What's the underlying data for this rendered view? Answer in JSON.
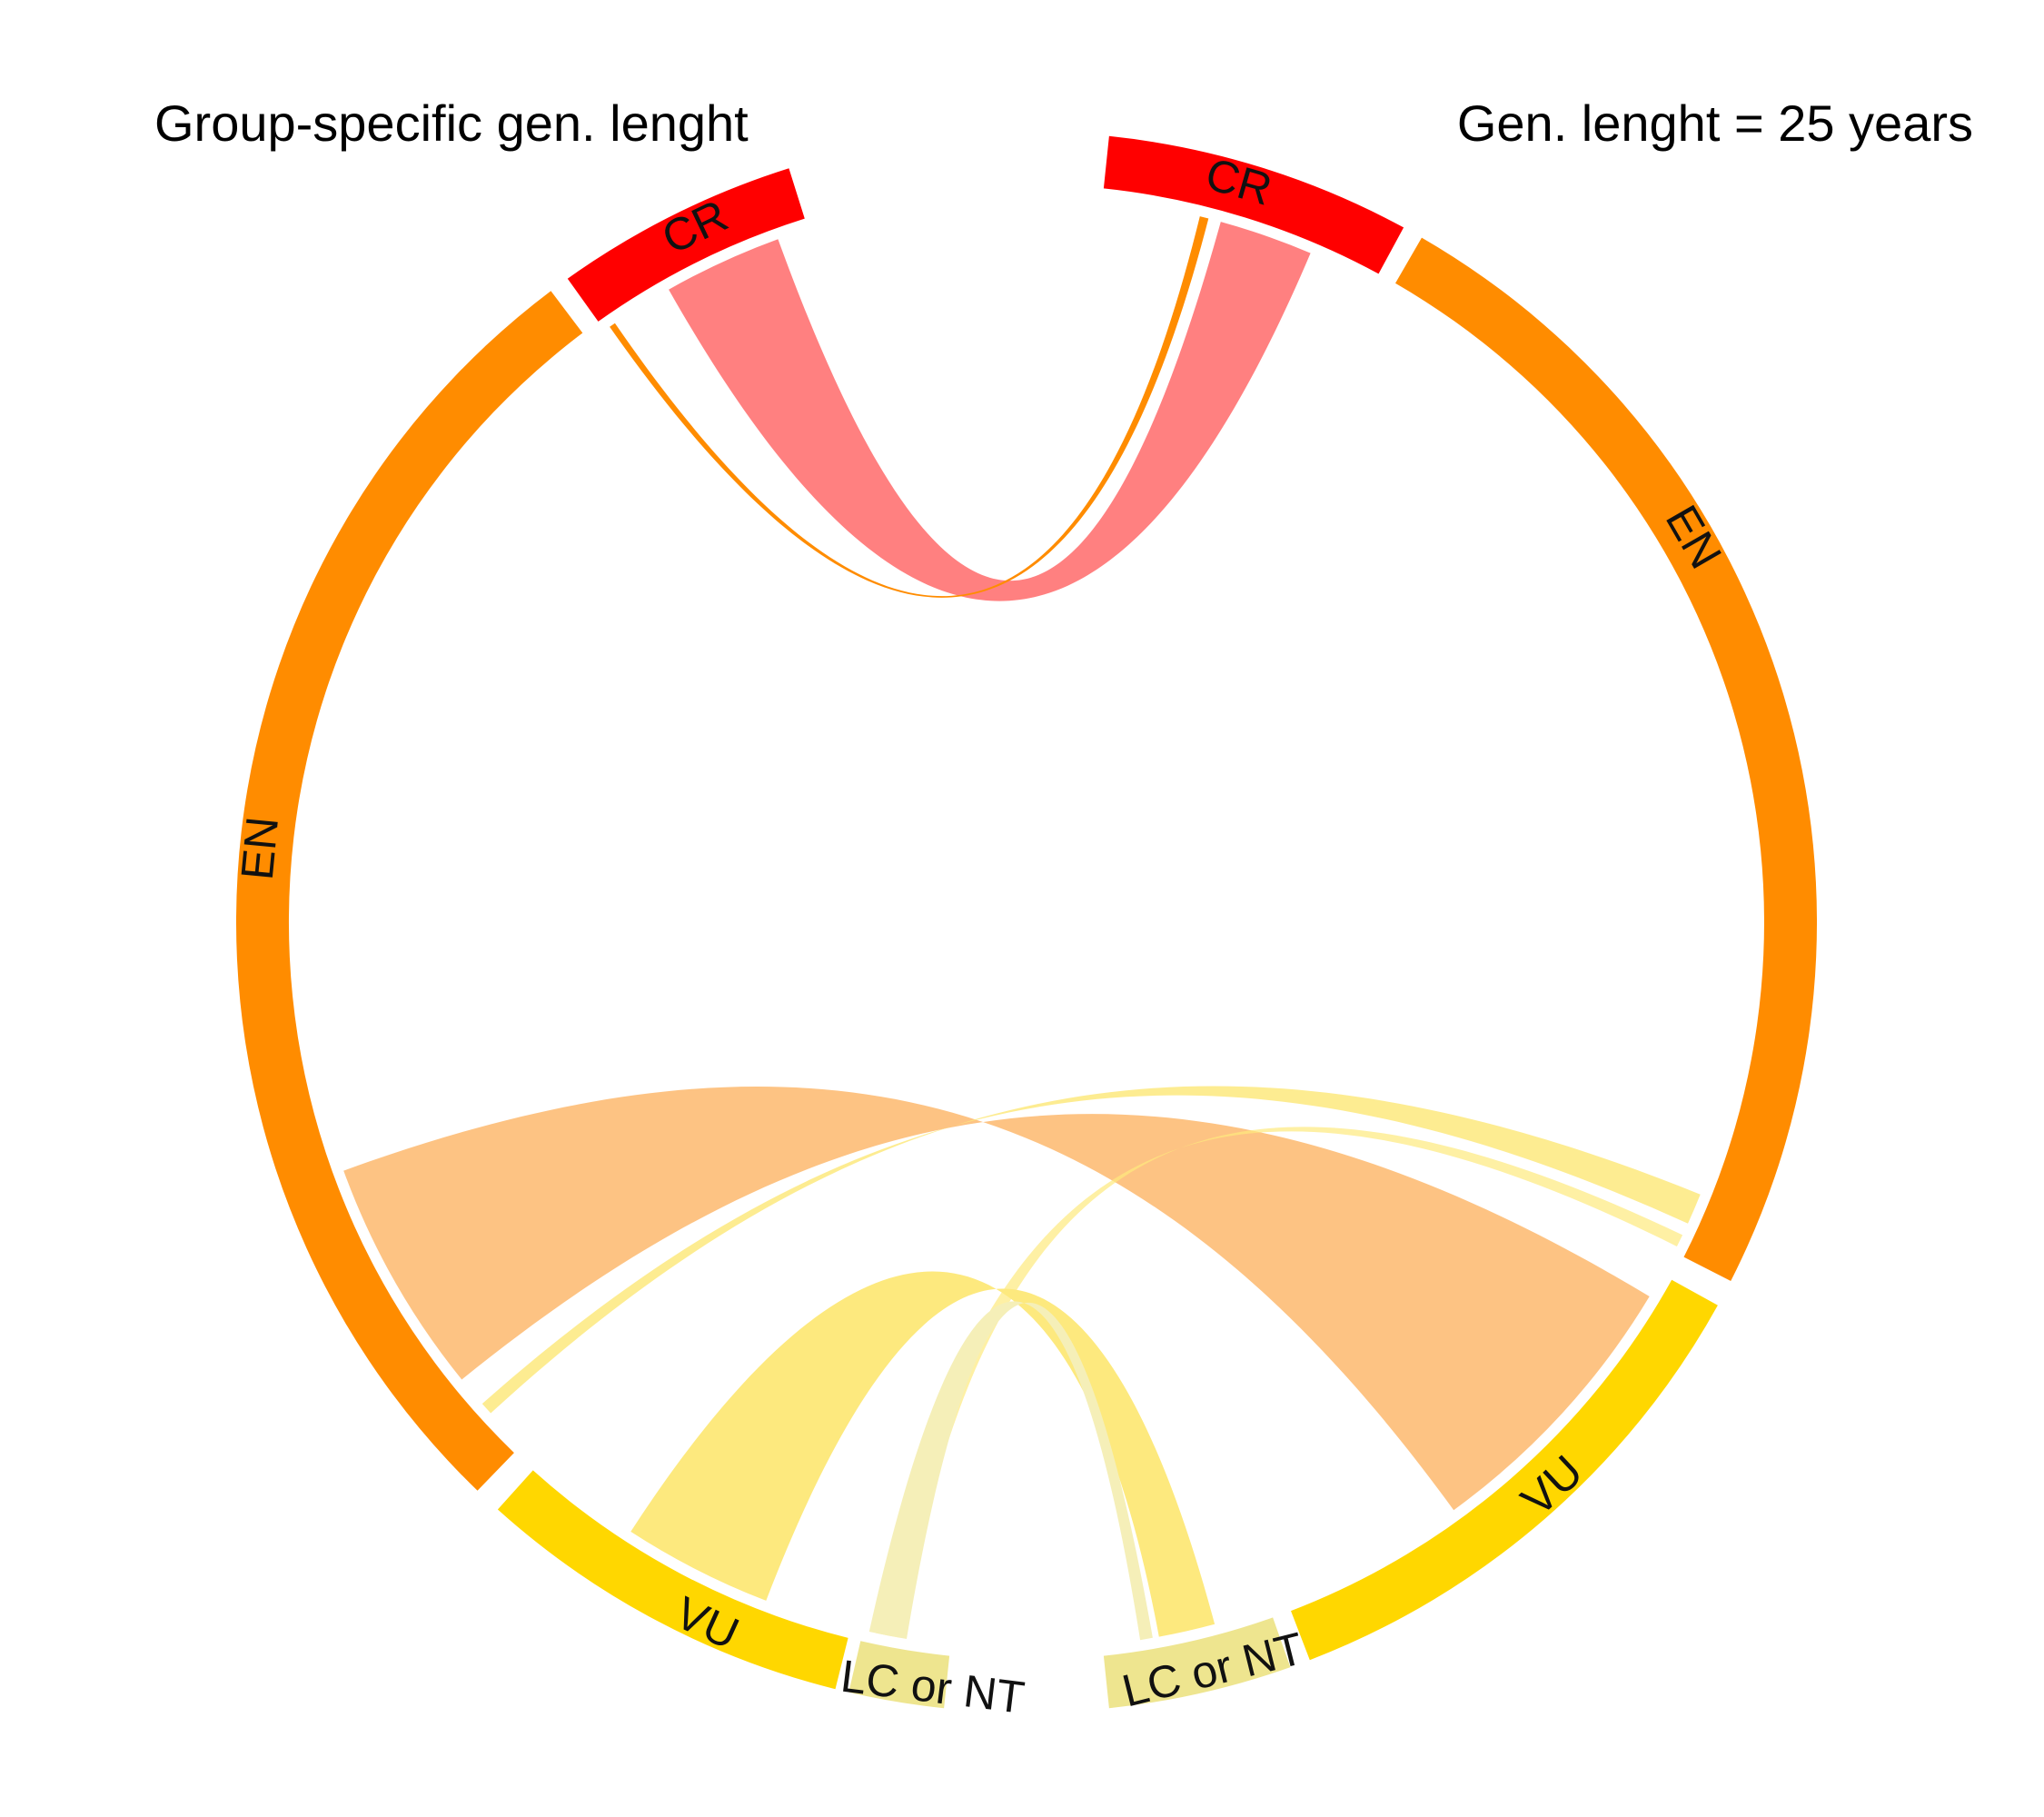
{
  "titles": {
    "left": "Group-specific gen. lenght",
    "right": "Gen. lenght = 25 years"
  },
  "colors": {
    "CR": "#ff0000",
    "EN": "#ff8c00",
    "VU": "#ffd700",
    "LC or NT": "#eee58f",
    "link_CR": "#ff8080",
    "link_EN": "#fdc383",
    "link_VU": "#fde97e",
    "link_LC": "#f5efb8"
  },
  "chart_data": {
    "type": "chord",
    "sectors": [
      {
        "id": "L_CR",
        "side": "left",
        "label": "CR",
        "category": "CR"
      },
      {
        "id": "L_EN",
        "side": "left",
        "label": "EN",
        "category": "EN"
      },
      {
        "id": "L_VU",
        "side": "left",
        "label": "VU",
        "category": "VU"
      },
      {
        "id": "L_LC",
        "side": "left",
        "label": "LC or NT",
        "category": "LC or NT"
      },
      {
        "id": "R_CR",
        "side": "right",
        "label": "CR",
        "category": "CR"
      },
      {
        "id": "R_EN",
        "side": "right",
        "label": "EN",
        "category": "EN"
      },
      {
        "id": "R_VU",
        "side": "right",
        "label": "VU",
        "category": "VU"
      },
      {
        "id": "R_LC",
        "side": "right",
        "label": "LC or NT",
        "category": "LC or NT"
      }
    ],
    "links": [
      {
        "from": "L_CR",
        "to": "R_CR",
        "category": "CR"
      },
      {
        "from": "L_EN",
        "to": "R_CR",
        "category": "EN"
      },
      {
        "from": "L_EN",
        "to": "R_VU",
        "category": "EN"
      },
      {
        "from": "L_VU",
        "to": "R_EN",
        "category": "VU"
      },
      {
        "from": "L_LC",
        "to": "R_EN",
        "category": "LC or NT"
      },
      {
        "from": "L_VU",
        "to": "R_LC",
        "category": "VU"
      },
      {
        "from": "L_LC",
        "to": "R_LC",
        "category": "LC or NT"
      }
    ]
  }
}
